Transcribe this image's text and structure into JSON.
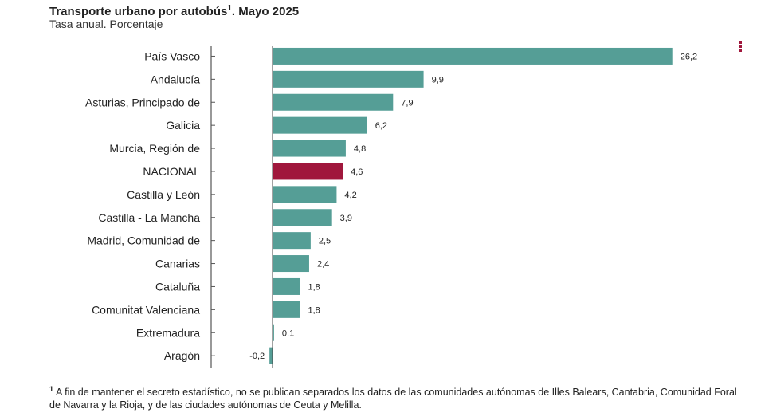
{
  "header": {
    "title": "Transporte urbano por autobús",
    "title_sup": "1",
    "title_suffix": ". Mayo 2025",
    "subtitle": "Tasa anual. Porcentaje"
  },
  "menu": {
    "icon": "kebab-menu-icon"
  },
  "colors": {
    "bar": "#559e96",
    "highlight": "#a0173c",
    "axis": "#555555"
  },
  "chart_data": {
    "type": "bar",
    "orientation": "horizontal",
    "categories": [
      "País Vasco",
      "Andalucía",
      "Asturias, Principado de",
      "Galicia",
      "Murcia, Región de",
      "NACIONAL",
      "Castilla y León",
      "Castilla - La Mancha",
      "Madrid, Comunidad de",
      "Canarias",
      "Cataluña",
      "Comunitat Valenciana",
      "Extremadura",
      "Aragón"
    ],
    "values": [
      26.2,
      9.9,
      7.9,
      6.2,
      4.8,
      4.6,
      4.2,
      3.9,
      2.5,
      2.4,
      1.8,
      1.8,
      0.1,
      -0.2
    ],
    "value_labels": [
      "26,2",
      "9,9",
      "7,9",
      "6,2",
      "4,8",
      "4,6",
      "4,2",
      "3,9",
      "2,5",
      "2,4",
      "1,8",
      "1,8",
      "0,1",
      "-0,2"
    ],
    "highlight_category": "NACIONAL",
    "xlim": [
      -4,
      26.2
    ],
    "grid": false
  },
  "footnote": {
    "marker": "1",
    "text": "A fin de mantener el secreto estadístico, no se publican separados los datos de las comunidades autónomas de Illes Balears, Cantabria, Comunidad Foral de Navarra y la Rioja, y de las ciudades autónomas de Ceuta y Melilla."
  }
}
